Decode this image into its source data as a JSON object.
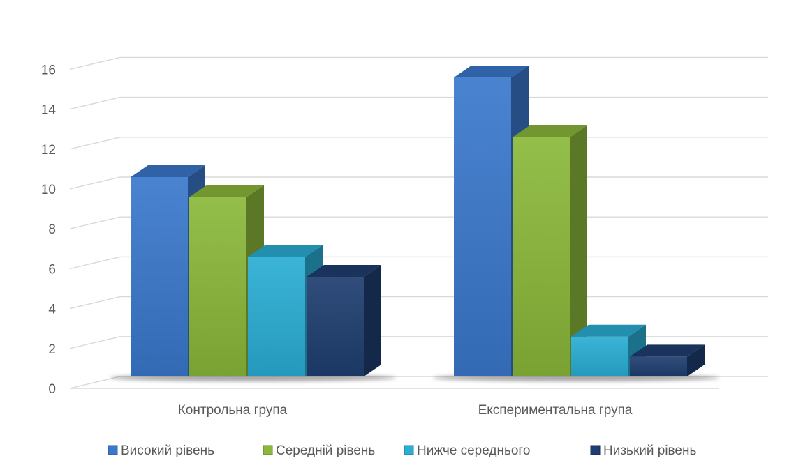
{
  "chart_data": {
    "type": "bar",
    "style": "3d-clustered-column",
    "categories": [
      "Контрольна група",
      "Експериментальна група"
    ],
    "series": [
      {
        "name": "Високий рівень",
        "values": [
          10,
          15
        ],
        "color": "#3a78cc"
      },
      {
        "name": "Середній рівень",
        "values": [
          9,
          12
        ],
        "color": "#8bb83a"
      },
      {
        "name": "Нижче середнього",
        "values": [
          6,
          2
        ],
        "color": "#2aaed4"
      },
      {
        "name": "Низький рівень",
        "values": [
          5,
          1
        ],
        "color": "#1f3e70"
      }
    ],
    "title": "",
    "xlabel": "",
    "ylabel": "",
    "ylim": [
      0,
      16
    ],
    "yticks": [
      "0",
      "2",
      "4",
      "6",
      "8",
      "10",
      "12",
      "14",
      "16"
    ],
    "grid": true,
    "legend_position": "bottom"
  }
}
